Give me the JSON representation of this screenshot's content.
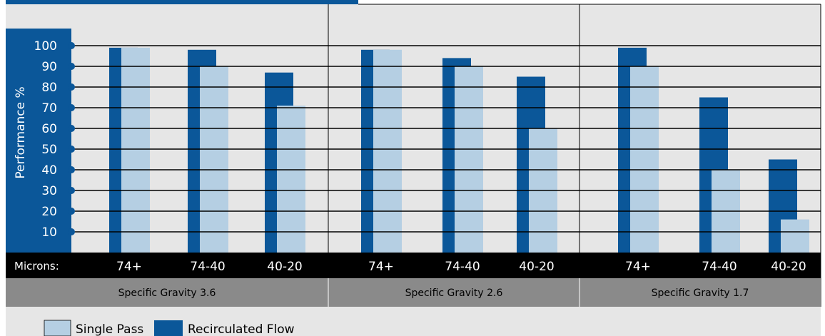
{
  "chart_data": {
    "type": "bar",
    "ylabel": "Performance %",
    "y_ticks": [
      "100",
      "90",
      "80",
      "70",
      "60",
      "50",
      "40",
      "30",
      "20",
      "10"
    ],
    "y_tick_values": [
      100,
      90,
      80,
      70,
      60,
      50,
      40,
      30,
      20,
      10
    ],
    "ylim": [
      0,
      100
    ],
    "grid": true,
    "x_prefix_label": "Microns:",
    "groups": [
      {
        "label": "Specific Gravity 3.6",
        "categories": [
          "74+",
          "74-40",
          "40-20"
        ],
        "single_pass": [
          99,
          90,
          71
        ],
        "recirculated": [
          99,
          98,
          87
        ]
      },
      {
        "label": "Specific Gravity 2.6",
        "categories": [
          "74+",
          "74-40",
          "40-20"
        ],
        "single_pass": [
          98,
          90,
          60
        ],
        "recirculated": [
          98,
          94,
          85
        ]
      },
      {
        "label": "Specific Gravity 1.7",
        "categories": [
          "74+",
          "74-40",
          "40-20"
        ],
        "single_pass": [
          90,
          40,
          16
        ],
        "recirculated": [
          99,
          75,
          45
        ]
      }
    ],
    "series": [
      {
        "name": "Single Pass",
        "color": "#b5cfe3"
      },
      {
        "name": "Recirculated Flow",
        "color": "#0b5799"
      }
    ],
    "legend_placement": "bottom-left"
  },
  "colors": {
    "panel_bg": "#e6e6e6",
    "accent_blue": "#0b5799",
    "light_blue": "#b5cfe3",
    "axis_band": "#000000",
    "gravity_band": "#8a8a8a"
  }
}
